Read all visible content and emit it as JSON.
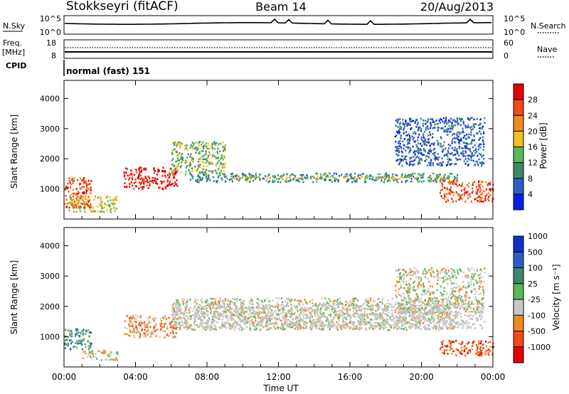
{
  "header": {
    "station": "Stokkseyri (fitACF)",
    "beam": "Beam 14",
    "date": "20/Aug/2013"
  },
  "side_labels": {
    "nsky": "N.Sky",
    "freq_line1": "Freq.",
    "freq_line2": "[MHz]",
    "cpid": "CPID",
    "nsearch": "N.Search",
    "nave": "Nave"
  },
  "top_strip": {
    "left_ticks": [
      "10^5",
      "10^0"
    ],
    "right_ticks": [
      "10^5",
      "10^0"
    ]
  },
  "freq_strip": {
    "left_ticks": [
      "18",
      "8"
    ],
    "right_ticks": [
      "60",
      "0"
    ]
  },
  "cpid_text": "normal (fast) 151",
  "colors": {
    "power_scale": [
      "#0a1ee6",
      "#2f5cc4",
      "#3a8a6a",
      "#59b85a",
      "#f0c020",
      "#f08a20",
      "#ee4a1a",
      "#e60000"
    ],
    "velocity_scale": [
      "#e60000",
      "#ee4a1a",
      "#f08a20",
      "#c8c8c8",
      "#59b85a",
      "#3a8a6a",
      "#2f5cc4",
      "#1030c8"
    ],
    "ground_scatter": "#c4c4c4"
  },
  "chart_data": [
    {
      "type": "heatmap",
      "panel": "power",
      "ylabel": "Slant Range [km]",
      "ylim": [
        0,
        4600
      ],
      "y_ticks": [
        "1000",
        "2000",
        "3000",
        "4000"
      ],
      "colorbar_label": "Power [dB]",
      "colorbar_ticks": [
        "4",
        "8",
        "12",
        "16",
        "20",
        "24",
        "28"
      ],
      "regions": [
        {
          "t0": 0.0,
          "t1": 1.5,
          "r0": 400,
          "r1": 1400,
          "level": 6
        },
        {
          "t0": 0.2,
          "t1": 3.0,
          "r0": 250,
          "r1": 800,
          "level": 4
        },
        {
          "t0": 3.3,
          "t1": 6.3,
          "r0": 1000,
          "r1": 1750,
          "level": 7
        },
        {
          "t0": 6.0,
          "t1": 9.0,
          "r0": 1500,
          "r1": 2600,
          "level": 3
        },
        {
          "t0": 7.0,
          "t1": 22.0,
          "r0": 1250,
          "r1": 1550,
          "level": 2
        },
        {
          "t0": 9.0,
          "t1": 22.0,
          "r0": 1350,
          "r1": 1450,
          "level": 4
        },
        {
          "t0": 18.5,
          "t1": 23.5,
          "r0": 1800,
          "r1": 3400,
          "level": 1
        },
        {
          "t0": 21.0,
          "t1": 24.0,
          "r0": 600,
          "r1": 1300,
          "level": 6
        }
      ]
    },
    {
      "type": "heatmap",
      "panel": "velocity",
      "ylabel": "Slant Range [km]",
      "ylim": [
        0,
        4600
      ],
      "y_ticks": [
        "1000",
        "2000",
        "3000",
        "4000"
      ],
      "colorbar_label": "Velocity [m s⁻¹]",
      "colorbar_ticks": [
        "1000",
        "500",
        "100",
        "25",
        "-25",
        "-100",
        "-500",
        "-1000"
      ],
      "xlabel": "Time UT",
      "x_ticks": [
        "00:00",
        "04:00",
        "08:00",
        "12:00",
        "16:00",
        "20:00",
        "00:00"
      ],
      "regions": [
        {
          "t0": 0.0,
          "t1": 1.5,
          "r0": 600,
          "r1": 1300,
          "level": 5
        },
        {
          "t0": 1.0,
          "t1": 3.0,
          "r0": 250,
          "r1": 600,
          "level": 3
        },
        {
          "t0": 3.3,
          "t1": 6.3,
          "r0": 1000,
          "r1": 1750,
          "level": 2
        },
        {
          "t0": 6.0,
          "t1": 22.0,
          "r0": 1250,
          "r1": 2300,
          "level": 3
        },
        {
          "t0": 18.5,
          "t1": 23.5,
          "r0": 1800,
          "r1": 3300,
          "level": 3
        },
        {
          "t0": 21.0,
          "t1": 24.0,
          "r0": 400,
          "r1": 900,
          "level": 1
        }
      ]
    }
  ]
}
